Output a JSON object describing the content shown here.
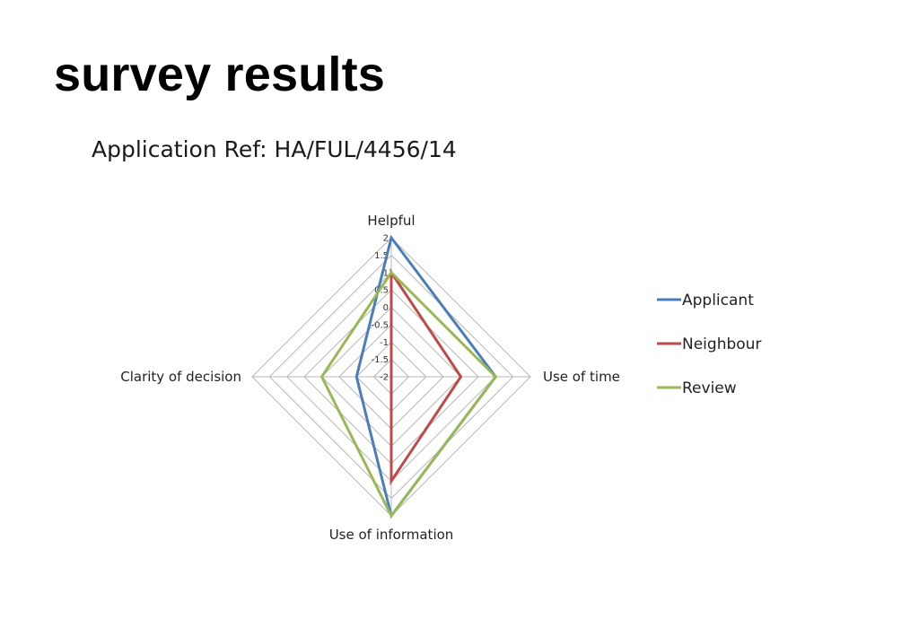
{
  "slide": {
    "title": "survey results",
    "subtitle": "Application Ref: HA/FUL/4456/14"
  },
  "chart_data": {
    "type": "radar",
    "axes": [
      "Helpful",
      "Use of time",
      "Use of information",
      "Clarity of decision"
    ],
    "rlim": [
      -2,
      2
    ],
    "ticks": [
      2,
      1.5,
      1,
      0.5,
      0,
      -0.5,
      -1,
      -1.5,
      -2
    ],
    "tick_labels": [
      "2",
      "1.5",
      "1",
      "0.5",
      "0",
      "-0.5",
      "-1",
      "-1.5",
      "-2"
    ],
    "grid": true,
    "legend": "right",
    "series": [
      {
        "name": "Applicant",
        "color": "#4a7ebb",
        "values": [
          2,
          1,
          2,
          -1
        ]
      },
      {
        "name": "Neighbour",
        "color": "#be4b48",
        "values": [
          1,
          0,
          1,
          -2
        ]
      },
      {
        "name": "Review",
        "color": "#98b954",
        "values": [
          1,
          1,
          2,
          0
        ]
      }
    ]
  }
}
